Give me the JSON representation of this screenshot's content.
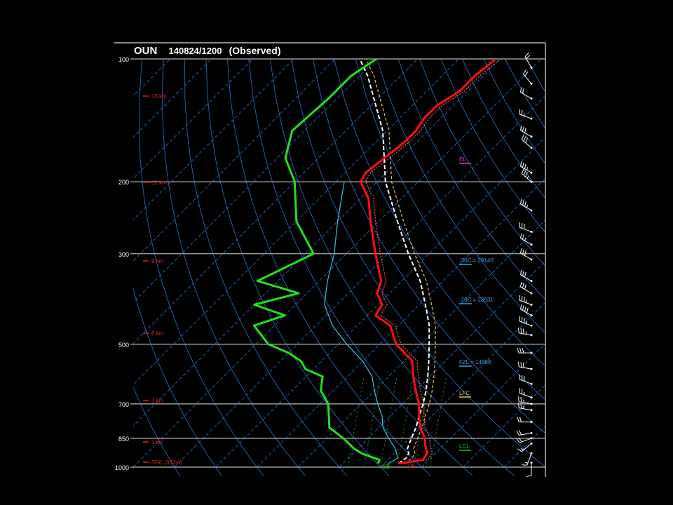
{
  "title": {
    "station": "OUN",
    "datetime": "140824/1200",
    "kind": "(Observed)"
  },
  "colors": {
    "background": "#000000",
    "isobar": "#9a9a9a",
    "isotherm": "#1f5fb0",
    "dry_adiabat": "#1f5fb0",
    "moist_adiabat": "#1e6e1e",
    "temperature": "#ff1010",
    "dewpoint": "#20e020",
    "virtual_temp": "#ff6060",
    "wetbulb": "#30c8e0",
    "parcel": "#ffffff",
    "parcel_virtual": "#f0c070",
    "height_label": "#dd2222",
    "el": "#d040d0",
    "isotherm_label": "#30a0e0",
    "lfc": "#e0c040",
    "lcl": "#20c020",
    "wind": "#ffffff"
  },
  "pressure_labels": [
    "100",
    "200",
    "300",
    "500",
    "700",
    "850",
    "1000"
  ],
  "height_labels": [
    "15 km",
    "12 km",
    "9 km",
    "6 km",
    "3 km",
    "1 km",
    "SFC (357m)"
  ],
  "levels": {
    "el": "EL",
    "m30c": "-30C = 29140'",
    "m20c": "-20C = 23931'",
    "fzl": "FZL = 14896'",
    "lfc": "LFC",
    "lcl": "LCL"
  },
  "surface_values": {
    "dewpoint": "68",
    "temperature": "74"
  },
  "chart_data": {
    "type": "skew-t",
    "pressure_axis": [
      1000,
      100
    ],
    "temperature_axis": [
      -40,
      50
    ],
    "temperature": {
      "p": [
        980,
        960,
        925,
        900,
        875,
        850,
        800,
        750,
        700,
        650,
        600,
        550,
        500,
        450,
        425,
        400,
        375,
        350,
        300,
        250,
        220,
        200,
        190,
        175,
        160,
        150,
        140,
        130,
        120,
        110,
        100
      ],
      "t": [
        23.5,
        28.5,
        28,
        26.5,
        25,
        23.8,
        20,
        17,
        14,
        10,
        6,
        2,
        -6,
        -12,
        -18,
        -19,
        -23,
        -25,
        -33,
        -42,
        -48,
        -54,
        -55,
        -54,
        -53,
        -53,
        -54,
        -54,
        -52,
        -52,
        -51
      ]
    },
    "dewpoint": {
      "p": [
        980,
        960,
        925,
        900,
        850,
        800,
        700,
        650,
        600,
        575,
        550,
        525,
        500,
        450,
        425,
        400,
        375,
        350,
        300,
        250,
        200,
        175,
        150,
        125,
        110,
        100
      ],
      "t": [
        18.5,
        18,
        12,
        9,
        4,
        -2,
        -8,
        -13,
        -16,
        -22,
        -25,
        -30,
        -37,
        -45,
        -40,
        -50,
        -42,
        -55,
        -48,
        -60,
        -70,
        -78,
        -83,
        -82,
        -82,
        -80
      ]
    },
    "wetbulb": {
      "p": [
        980,
        950,
        900,
        850,
        800,
        750,
        700,
        650,
        600,
        550,
        500,
        450,
        400,
        350,
        300,
        250,
        200
      ],
      "t": [
        21,
        22,
        19,
        15,
        11,
        8,
        4,
        0,
        -4,
        -10,
        -18,
        -26,
        -33,
        -38,
        -43,
        -50,
        -58
      ]
    },
    "parcel": {
      "p": [
        980,
        950,
        925,
        900,
        850,
        800,
        750,
        700,
        650,
        600,
        550,
        500,
        450,
        400,
        350,
        300,
        250,
        200,
        150,
        125,
        110,
        100
      ],
      "t": [
        23.5,
        24,
        23.5,
        22,
        20.5,
        19,
        17,
        15,
        12.5,
        9.5,
        6,
        2,
        -2.5,
        -8.5,
        -15.5,
        -25,
        -35.5,
        -48,
        -61,
        -71,
        -78,
        -84
      ]
    },
    "winds": {
      "p": [
        975,
        925,
        875,
        850,
        825,
        775,
        725,
        700,
        675,
        625,
        575,
        525,
        475,
        450,
        425,
        400,
        375,
        350,
        310,
        285,
        265,
        235,
        200,
        190,
        165,
        155,
        140,
        125,
        115,
        105
      ],
      "dir": [
        180,
        200,
        230,
        250,
        260,
        270,
        280,
        280,
        290,
        290,
        280,
        270,
        280,
        290,
        300,
        290,
        300,
        300,
        300,
        300,
        290,
        300,
        310,
        300,
        310,
        300,
        290,
        300,
        320,
        330
      ],
      "spd": [
        10,
        15,
        15,
        20,
        20,
        20,
        25,
        25,
        25,
        30,
        30,
        30,
        35,
        35,
        40,
        35,
        30,
        30,
        30,
        25,
        30,
        35,
        35,
        35,
        30,
        30,
        25,
        20,
        20,
        20
      ]
    }
  }
}
